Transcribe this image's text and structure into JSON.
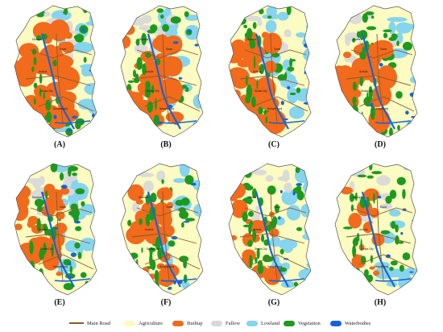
{
  "panels": [
    {
      "label": "(A)",
      "towns": [
        "Dhamrai",
        "Savar",
        "Ashulia",
        "Dhaka City",
        "Narayanganj"
      ]
    },
    {
      "label": "(B)",
      "towns": [
        "Dhamrai",
        "Savar",
        "Ashulia",
        "Dhaka City",
        "Narayanganj"
      ]
    },
    {
      "label": "(C)",
      "towns": [
        "Dhamrai",
        "Savar",
        "Ashulia",
        "Dhaka City",
        "Narayanganj"
      ]
    },
    {
      "label": "(D)",
      "towns": [
        "Dhamrai",
        "Savar",
        "Ashulia",
        "Dhaka City",
        "Narayanganj"
      ]
    },
    {
      "label": "(E)",
      "towns": [
        "Dhamrai",
        "Savar",
        "Ashulia",
        "Dhaka City",
        "Narayanganj"
      ]
    },
    {
      "label": "(F)",
      "towns": [
        "Dhamrai",
        "Savar",
        "Ashulia",
        "Dhaka City",
        "Narayanganj"
      ]
    },
    {
      "label": "(G)",
      "towns": [
        "Dhamrai",
        "Savar",
        "Ashulia",
        "Dhaka City",
        "Narayanganj"
      ]
    },
    {
      "label": "(H)",
      "towns": [
        "Dhamrai",
        "Savar",
        "Ashulia",
        "Dhaka City",
        "Narayanganj"
      ]
    }
  ],
  "legend": [
    {
      "name": "road",
      "label": "Main Road",
      "color": "#8b5a2b",
      "kind": "line"
    },
    {
      "name": "agriculture",
      "label": "Agriculture",
      "color": "#fbfbc2",
      "kind": "swatch"
    },
    {
      "name": "builtup",
      "label": "Builtup",
      "color": "#f26a1b",
      "kind": "swatch"
    },
    {
      "name": "fallow",
      "label": "Fallow",
      "color": "#d9d9d9",
      "kind": "swatch"
    },
    {
      "name": "lowland",
      "label": "Lowland",
      "color": "#86d4ee",
      "kind": "swatch"
    },
    {
      "name": "vegetation",
      "label": "Vegetation",
      "color": "#1d9a1d",
      "kind": "swatch"
    },
    {
      "name": "waterbodies",
      "label": "Waterbodies",
      "color": "#1565d8",
      "kind": "swatch"
    }
  ],
  "colors": {
    "agriculture": "#fbfbc2",
    "builtup": "#f26a1b",
    "fallow": "#d9d9d9",
    "lowland": "#86d4ee",
    "vegetation": "#1d9a1d",
    "water": "#1565d8",
    "road": "#8b5a2b"
  }
}
